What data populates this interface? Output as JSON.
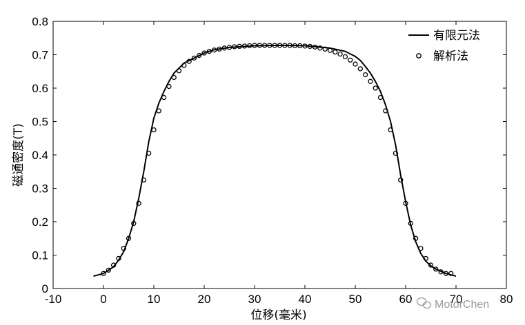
{
  "chart_data": {
    "type": "line",
    "xlabel": "位移(毫米)",
    "ylabel": "磁通密度(T)",
    "xlim": [
      -10,
      80
    ],
    "ylim": [
      0,
      0.8
    ],
    "xticks": [
      -10,
      0,
      10,
      20,
      30,
      40,
      50,
      60,
      70,
      80
    ],
    "yticks": [
      0,
      0.1,
      0.2,
      0.3,
      0.4,
      0.5,
      0.6,
      0.7,
      0.8
    ],
    "xtick_labels": [
      "-10",
      "0",
      "10",
      "20",
      "30",
      "40",
      "50",
      "60",
      "70",
      "80"
    ],
    "ytick_labels": [
      "0",
      "0.1",
      "0.2",
      "0.3",
      "0.4",
      "0.5",
      "0.6",
      "0.7",
      "0.8"
    ],
    "legend_position": "top-right",
    "grid": false,
    "series": [
      {
        "name": "有限元法",
        "style": "solid-line",
        "x": [
          -2,
          0,
          2,
          3,
          4,
          5,
          6,
          7,
          8,
          9,
          10,
          11,
          12,
          13,
          14,
          15,
          16,
          18,
          20,
          22,
          25,
          30,
          35,
          40,
          45,
          48,
          50,
          51,
          52,
          53,
          54,
          55,
          56,
          57,
          58,
          59,
          60,
          61,
          62,
          63,
          64,
          65,
          66,
          68,
          70
        ],
        "y": [
          0.037,
          0.045,
          0.065,
          0.085,
          0.11,
          0.15,
          0.2,
          0.27,
          0.35,
          0.44,
          0.51,
          0.555,
          0.59,
          0.62,
          0.645,
          0.66,
          0.675,
          0.69,
          0.705,
          0.715,
          0.722,
          0.727,
          0.728,
          0.727,
          0.72,
          0.71,
          0.695,
          0.683,
          0.665,
          0.645,
          0.62,
          0.59,
          0.55,
          0.5,
          0.43,
          0.34,
          0.26,
          0.19,
          0.14,
          0.105,
          0.082,
          0.068,
          0.058,
          0.045,
          0.037
        ]
      },
      {
        "name": "解析法",
        "style": "open-circle-markers",
        "x": [
          0,
          1,
          2,
          3,
          4,
          5,
          6,
          7,
          8,
          9,
          10,
          11,
          12,
          13,
          14,
          15,
          16,
          17,
          18,
          19,
          20,
          21,
          22,
          23,
          24,
          25,
          26,
          27,
          28,
          29,
          30,
          31,
          32,
          33,
          34,
          35,
          36,
          37,
          38,
          39,
          40,
          41,
          42,
          43,
          44,
          45,
          46,
          47,
          48,
          49,
          50,
          51,
          52,
          53,
          54,
          55,
          56,
          57,
          58,
          59,
          60,
          61,
          62,
          63,
          64,
          65,
          66,
          67,
          68,
          69
        ],
        "y": [
          0.045,
          0.055,
          0.07,
          0.09,
          0.12,
          0.15,
          0.195,
          0.255,
          0.325,
          0.405,
          0.475,
          0.532,
          0.572,
          0.605,
          0.632,
          0.652,
          0.668,
          0.68,
          0.69,
          0.698,
          0.705,
          0.71,
          0.714,
          0.717,
          0.72,
          0.722,
          0.724,
          0.725,
          0.726,
          0.727,
          0.728,
          0.728,
          0.728,
          0.728,
          0.728,
          0.728,
          0.728,
          0.728,
          0.727,
          0.727,
          0.726,
          0.725,
          0.723,
          0.72,
          0.717,
          0.713,
          0.708,
          0.702,
          0.694,
          0.684,
          0.672,
          0.658,
          0.64,
          0.62,
          0.6,
          0.572,
          0.532,
          0.475,
          0.405,
          0.325,
          0.255,
          0.195,
          0.15,
          0.12,
          0.09,
          0.07,
          0.058,
          0.05,
          0.045,
          0.045
        ]
      }
    ]
  },
  "watermark": {
    "text": "MotorChen"
  }
}
